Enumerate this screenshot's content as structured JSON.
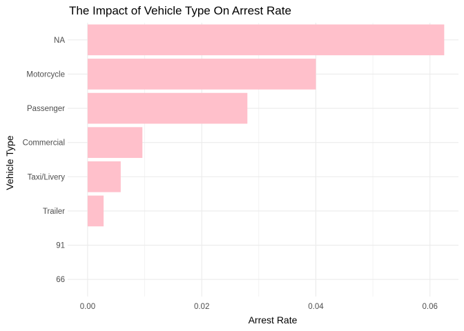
{
  "chart_data": {
    "type": "bar",
    "orientation": "horizontal",
    "title": "The Impact of Vehicle Type On Arrest Rate",
    "xlabel": "Arrest Rate",
    "ylabel": "Vehicle Type",
    "categories": [
      "NA",
      "Motorcycle",
      "Passenger",
      "Commercial",
      "Taxi/Livery",
      "Trailer",
      "91",
      "66"
    ],
    "values": [
      0.0625,
      0.04,
      0.028,
      0.0096,
      0.0058,
      0.0028,
      0,
      0
    ],
    "x_ticks": [
      "0.00",
      "0.02",
      "0.04",
      "0.06"
    ],
    "x_tick_values": [
      0,
      0.02,
      0.04,
      0.06
    ],
    "xlim": [
      -0.0035,
      0.065
    ],
    "grid": true,
    "bar_color": "#FFC0CB",
    "grid_color": "#EBEBEB"
  }
}
